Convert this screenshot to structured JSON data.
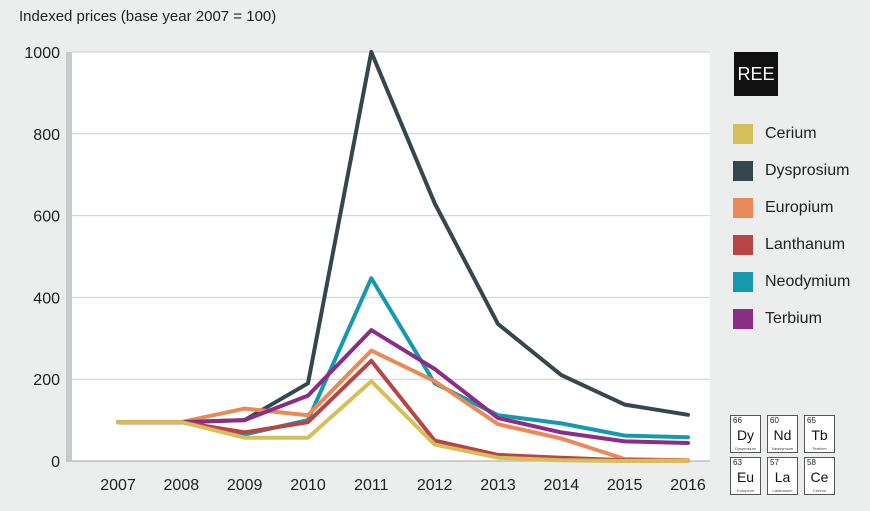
{
  "chart_data": {
    "type": "line",
    "title": "",
    "ylabel": "Indexed prices (base year 2007 = 100)",
    "xlabel": "",
    "x": [
      "2007",
      "2008",
      "2009",
      "2010",
      "2011",
      "2012",
      "2013",
      "2014",
      "2015",
      "2016"
    ],
    "ylim": [
      0,
      1000
    ],
    "yticks": [
      0,
      200,
      400,
      600,
      800,
      1000
    ],
    "grid": true,
    "legend_title": "REE",
    "legend_position": "right",
    "series": [
      {
        "name": "Cerium",
        "color": "#d4bf5a",
        "values": [
          95,
          95,
          57,
          57,
          195,
          40,
          8,
          2,
          0,
          0
        ]
      },
      {
        "name": "Dysprosium",
        "color": "#34474f",
        "values": [
          95,
          95,
          100,
          190,
          1000,
          630,
          335,
          210,
          138,
          113
        ]
      },
      {
        "name": "Europium",
        "color": "#e88a57",
        "values": [
          95,
          95,
          128,
          112,
          270,
          195,
          90,
          55,
          5,
          2
        ]
      },
      {
        "name": "Lanthanum",
        "color": "#b84545",
        "values": [
          95,
          95,
          70,
          95,
          245,
          50,
          15,
          8,
          2,
          0
        ]
      },
      {
        "name": "Neodymium",
        "color": "#1799ad",
        "values": [
          95,
          95,
          65,
          100,
          447,
          190,
          112,
          92,
          62,
          58
        ]
      },
      {
        "name": "Terbium",
        "color": "#8b2c86",
        "values": [
          95,
          95,
          100,
          160,
          320,
          225,
          105,
          70,
          48,
          44
        ]
      }
    ]
  },
  "elements": [
    {
      "number": "66",
      "symbol": "Dy",
      "name": "Dysprosium"
    },
    {
      "number": "60",
      "symbol": "Nd",
      "name": "Neodymium"
    },
    {
      "number": "65",
      "symbol": "Tb",
      "name": "Terbium"
    },
    {
      "number": "63",
      "symbol": "Eu",
      "name": "Europium"
    },
    {
      "number": "57",
      "symbol": "La",
      "name": "Lanthanum"
    },
    {
      "number": "58",
      "symbol": "Ce",
      "name": "Cerium"
    }
  ]
}
